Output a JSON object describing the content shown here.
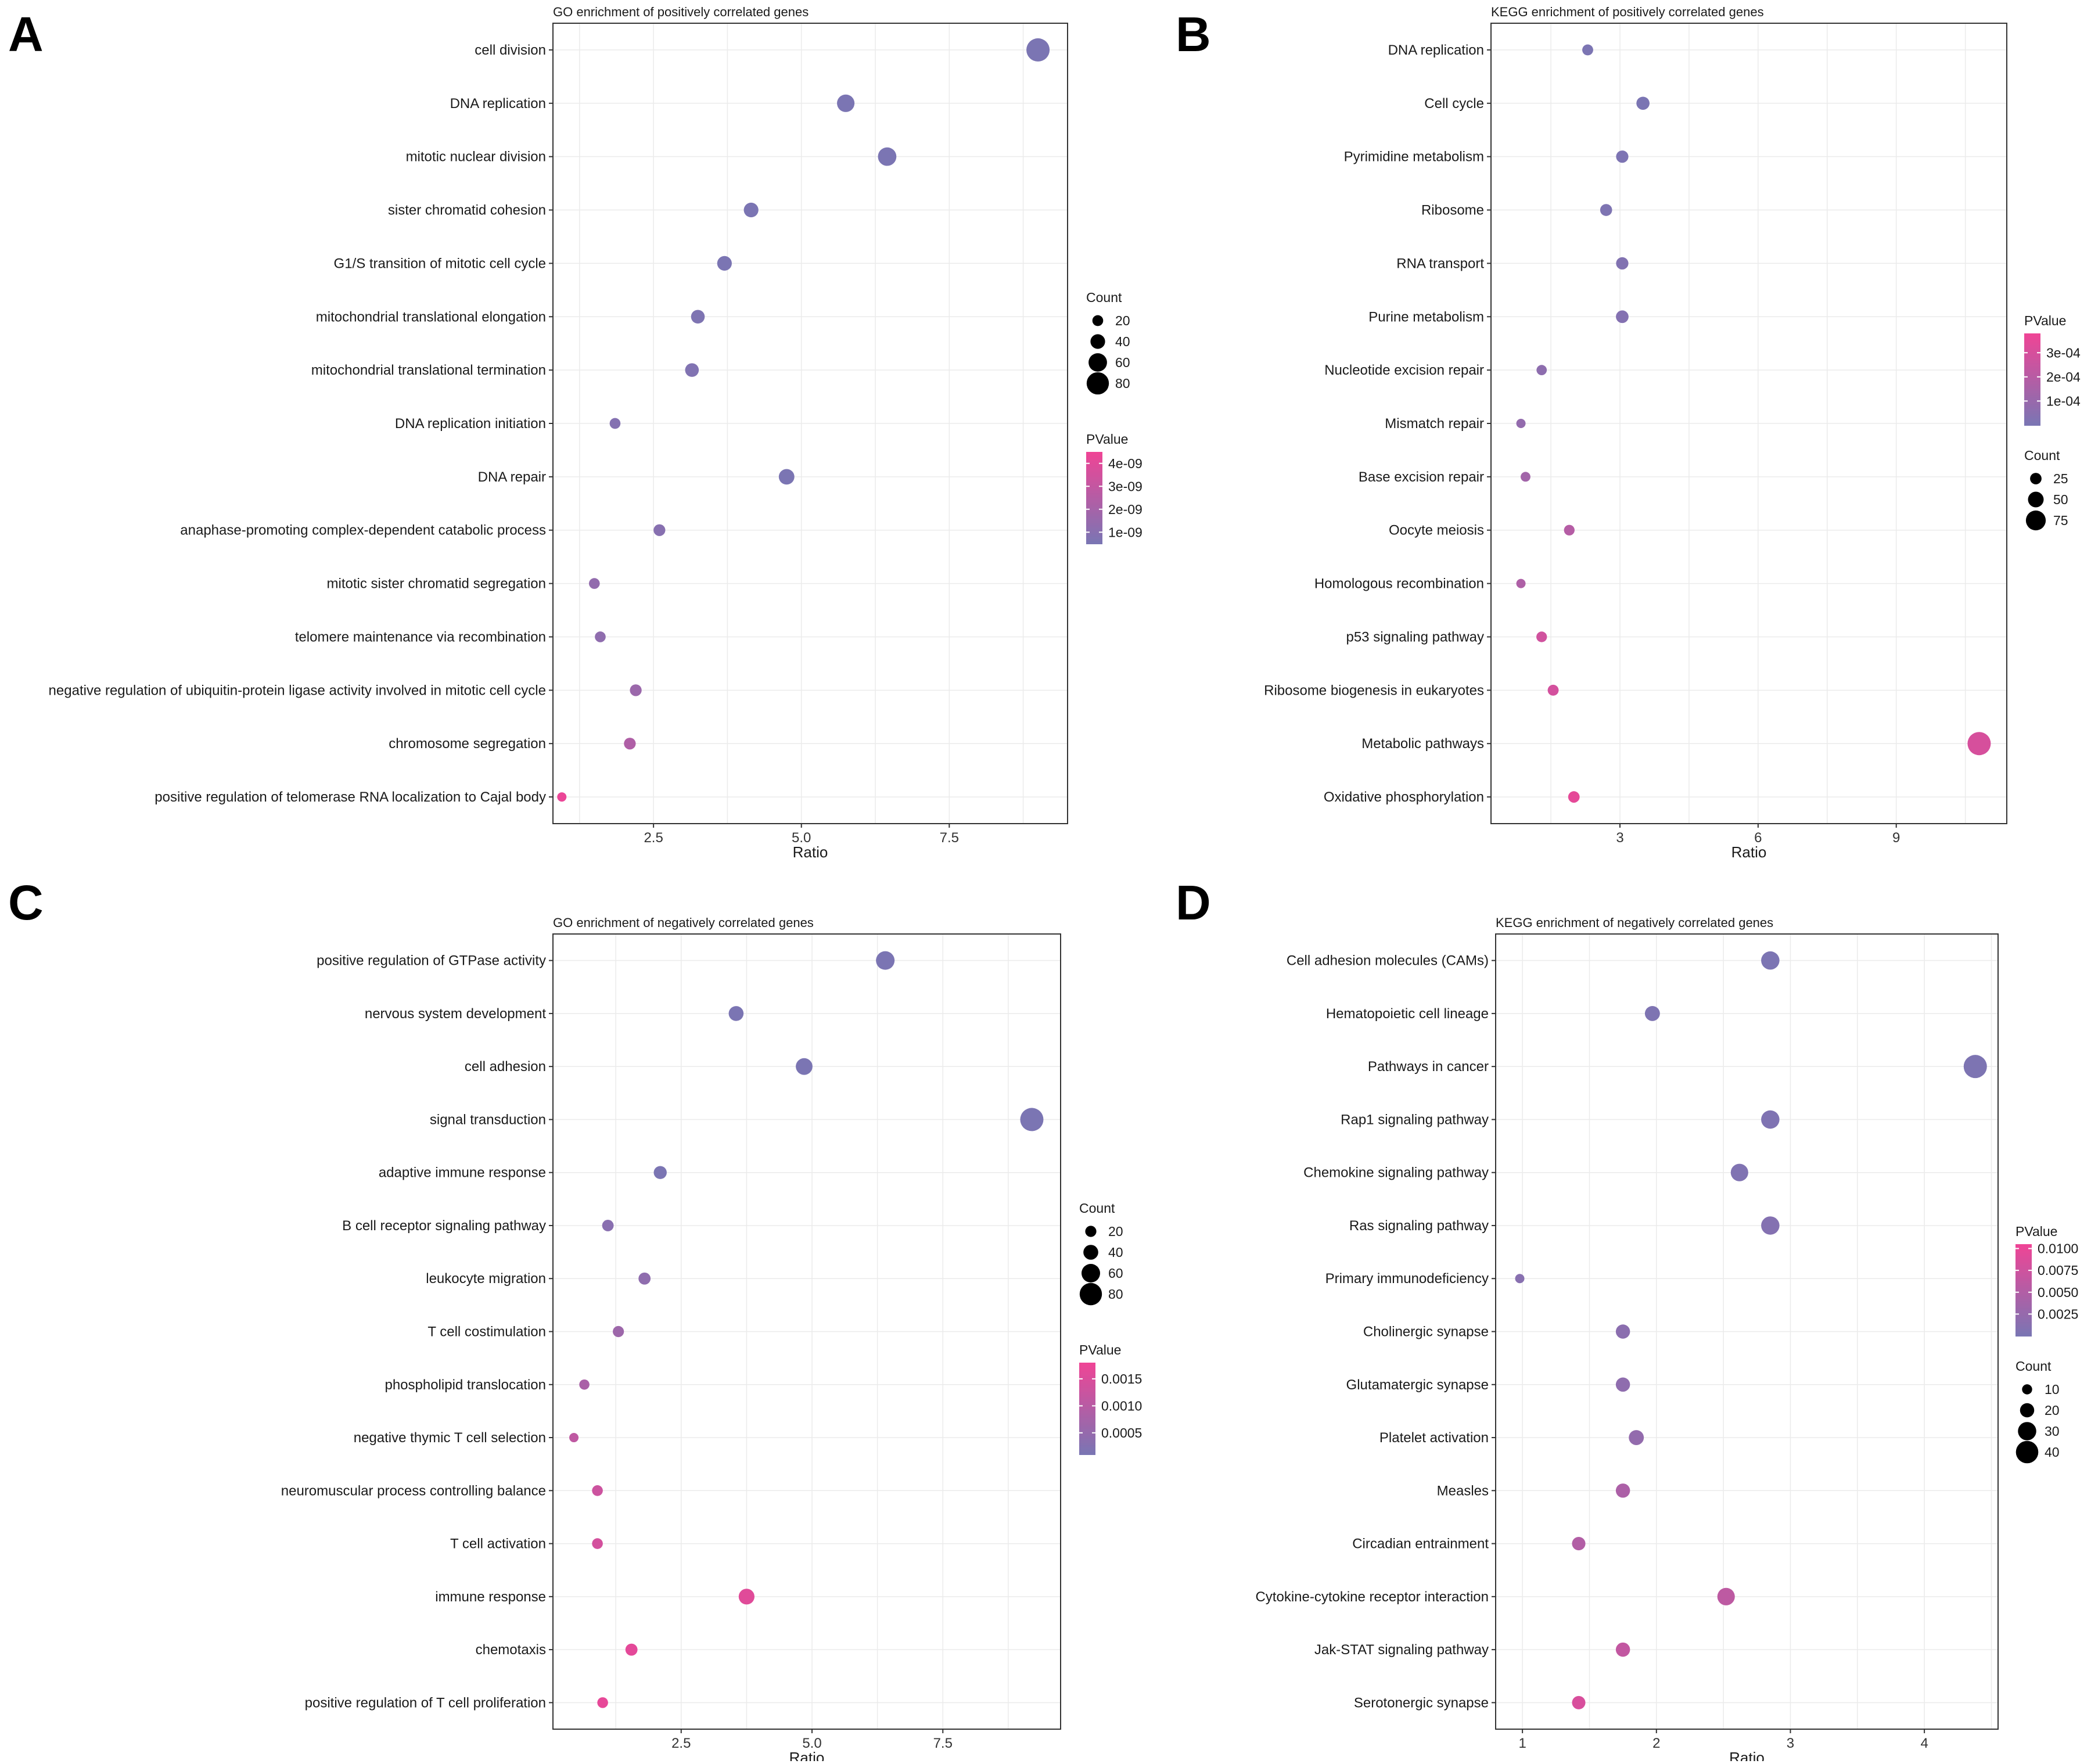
{
  "colors": {
    "low": "#7b75b3",
    "high": "#ee4596"
  },
  "chart_data": [
    {
      "panel": "A",
      "type": "scatter",
      "title": "GO enrichment of positively correlated genes",
      "xlabel": "Ratio",
      "xlim": [
        0.8,
        9.5
      ],
      "xticks": [
        2.5,
        5.0,
        7.5
      ],
      "xtick_labels": [
        "2.5",
        "5.0",
        "7.5"
      ],
      "categories": [
        "cell division",
        "DNA replication",
        "mitotic nuclear division",
        "sister chromatid cohesion",
        "G1/S transition of mitotic cell cycle",
        "mitochondrial translational elongation",
        "mitochondrial translational termination",
        "DNA replication initiation",
        "DNA repair",
        "anaphase-promoting complex-dependent catabolic process",
        "mitotic sister chromatid segregation",
        "telomere maintenance via recombination",
        "negative regulation of ubiquitin-protein ligase activity involved in mitotic cell cycle",
        "chromosome segregation",
        "positive regulation of telomerase RNA localization to Cajal body"
      ],
      "ratio": [
        9.0,
        5.75,
        6.45,
        4.15,
        3.7,
        3.25,
        3.15,
        1.85,
        4.75,
        2.6,
        1.5,
        1.6,
        2.2,
        2.1,
        0.95
      ],
      "count": [
        85,
        55,
        60,
        40,
        40,
        35,
        35,
        20,
        45,
        25,
        20,
        20,
        25,
        25,
        12
      ],
      "pvalue": [
        2e-11,
        1e-10,
        5e-11,
        3e-10,
        4e-10,
        6e-10,
        7e-10,
        8e-10,
        2e-10,
        9e-10,
        1.3e-09,
        1.2e-09,
        1.6e-09,
        2.3e-09,
        4.4e-09
      ],
      "legend_order": [
        "count",
        "pvalue"
      ],
      "count_legend": {
        "title": "Count",
        "values": [
          20,
          40,
          60,
          80
        ],
        "labels": [
          "20",
          "40",
          "60",
          "80"
        ]
      },
      "color_legend": {
        "title": "PValue",
        "min": 5e-10,
        "max": 4.5e-09,
        "ticks": [
          4e-09,
          3e-09,
          2e-09,
          1e-09
        ],
        "labels": [
          "4e-09",
          "3e-09",
          "2e-09",
          "1e-09"
        ]
      }
    },
    {
      "panel": "B",
      "type": "scatter",
      "title": "KEGG enrichment of positively correlated genes",
      "xlabel": "Ratio",
      "xlim": [
        0.2,
        11.4
      ],
      "xticks": [
        3,
        6,
        9
      ],
      "xtick_labels": [
        "3",
        "6",
        "9"
      ],
      "categories": [
        "DNA replication",
        "Cell cycle",
        "Pyrimidine metabolism",
        "Ribosome",
        "RNA transport",
        "Purine metabolism",
        "Nucleotide excision repair",
        "Mismatch repair",
        "Base excision repair",
        "Oocyte meiosis",
        "Homologous recombination",
        "p53 signaling pathway",
        "Ribosome biogenesis in eukaryotes",
        "Metabolic pathways",
        "Oxidative phosphorylation"
      ],
      "ratio": [
        2.3,
        3.5,
        3.05,
        2.7,
        3.05,
        3.05,
        1.3,
        0.85,
        0.95,
        1.9,
        0.85,
        1.3,
        1.55,
        10.8,
        2.0
      ],
      "count": [
        22,
        35,
        30,
        28,
        30,
        32,
        18,
        12,
        15,
        20,
        12,
        20,
        22,
        95,
        25
      ],
      "pvalue": [
        2e-06,
        1e-06,
        5e-06,
        1e-05,
        2e-05,
        3e-05,
        6e-05,
        8e-05,
        0.00013,
        0.00019,
        0.00017,
        0.00028,
        0.00029,
        0.0003,
        0.00035
      ],
      "legend_order": [
        "pvalue",
        "count"
      ],
      "count_legend": {
        "title": "Count",
        "values": [
          25,
          50,
          75
        ],
        "labels": [
          "25",
          "50",
          "75"
        ]
      },
      "color_legend": {
        "title": "PValue",
        "min": 0,
        "max": 0.00038,
        "ticks": [
          0.0003,
          0.0002,
          0.0001
        ],
        "labels": [
          "3e-04",
          "2e-04",
          "1e-04"
        ]
      }
    },
    {
      "panel": "C",
      "type": "scatter",
      "title": "GO enrichment of negatively correlated genes",
      "xlabel": "Ratio",
      "xlim": [
        0.05,
        9.75
      ],
      "xticks": [
        2.5,
        5.0,
        7.5
      ],
      "xtick_labels": [
        "2.5",
        "5.0",
        "7.5"
      ],
      "categories": [
        "positive regulation of GTPase activity",
        "nervous system development",
        "cell adhesion",
        "signal transduction",
        "adaptive immune response",
        "B cell receptor signaling pathway",
        "leukocyte migration",
        "T cell costimulation",
        "phospholipid translocation",
        "negative thymic T cell selection",
        "neuromuscular process controlling balance",
        "T cell activation",
        "immune response",
        "chemotaxis",
        "positive regulation of T cell proliferation"
      ],
      "ratio": [
        6.4,
        3.55,
        4.85,
        9.2,
        2.1,
        1.1,
        1.8,
        1.3,
        0.65,
        0.45,
        0.9,
        0.9,
        3.75,
        1.55,
        1.0
      ],
      "count": [
        60,
        40,
        50,
        85,
        30,
        22,
        25,
        20,
        15,
        10,
        18,
        18,
        45,
        25,
        18
      ],
      "pvalue": [
        1e-05,
        2e-05,
        3e-05,
        1e-05,
        5e-05,
        0.0003,
        0.0004,
        0.0006,
        0.0008,
        0.0011,
        0.0013,
        0.0014,
        0.0016,
        0.00165,
        0.0017
      ],
      "legend_order": [
        "count",
        "pvalue"
      ],
      "count_legend": {
        "title": "Count",
        "values": [
          20,
          40,
          60,
          80
        ],
        "labels": [
          "20",
          "40",
          "60",
          "80"
        ]
      },
      "color_legend": {
        "title": "PValue",
        "min": 0.0001,
        "max": 0.0018,
        "ticks": [
          0.0015,
          0.001,
          0.0005
        ],
        "labels": [
          "0.0015",
          "0.0010",
          "0.0005"
        ]
      }
    },
    {
      "panel": "D",
      "type": "scatter",
      "title": "KEGG enrichment of negatively correlated genes",
      "xlabel": "Ratio",
      "xlim": [
        0.8,
        4.55
      ],
      "xticks": [
        1,
        2,
        3,
        4
      ],
      "xtick_labels": [
        "1",
        "2",
        "3",
        "4"
      ],
      "categories": [
        "Cell adhesion molecules (CAMs)",
        "Hematopoietic cell lineage",
        "Pathways in cancer",
        "Rap1 signaling pathway",
        "Chemokine signaling pathway",
        "Ras signaling pathway",
        "Primary immunodeficiency",
        "Cholinergic synapse",
        "Glutamatergic synapse",
        "Platelet activation",
        "Measles",
        "Circadian entrainment",
        "Cytokine-cytokine receptor interaction",
        "Jak-STAT signaling pathway",
        "Serotonergic synapse"
      ],
      "ratio": [
        2.85,
        1.97,
        4.38,
        2.85,
        2.62,
        2.85,
        0.98,
        1.75,
        1.75,
        1.85,
        1.75,
        1.42,
        2.52,
        1.75,
        1.42
      ],
      "count": [
        30,
        22,
        42,
        30,
        28,
        30,
        8,
        20,
        20,
        22,
        20,
        18,
        28,
        20,
        18
      ],
      "pvalue": [
        0.0001,
        0.0003,
        0.0002,
        0.0004,
        0.0005,
        0.0008,
        0.0012,
        0.0015,
        0.0018,
        0.0022,
        0.0045,
        0.005,
        0.006,
        0.0065,
        0.0085
      ],
      "legend_order": [
        "pvalue",
        "count"
      ],
      "count_legend": {
        "title": "Count",
        "values": [
          10,
          20,
          30,
          40
        ],
        "labels": [
          "10",
          "20",
          "30",
          "40"
        ]
      },
      "color_legend": {
        "title": "PValue",
        "min": 0,
        "max": 0.0105,
        "ticks": [
          0.01,
          0.0075,
          0.005,
          0.0025
        ],
        "labels": [
          "0.0100",
          "0.0075",
          "0.0050",
          "0.0025"
        ]
      }
    }
  ]
}
